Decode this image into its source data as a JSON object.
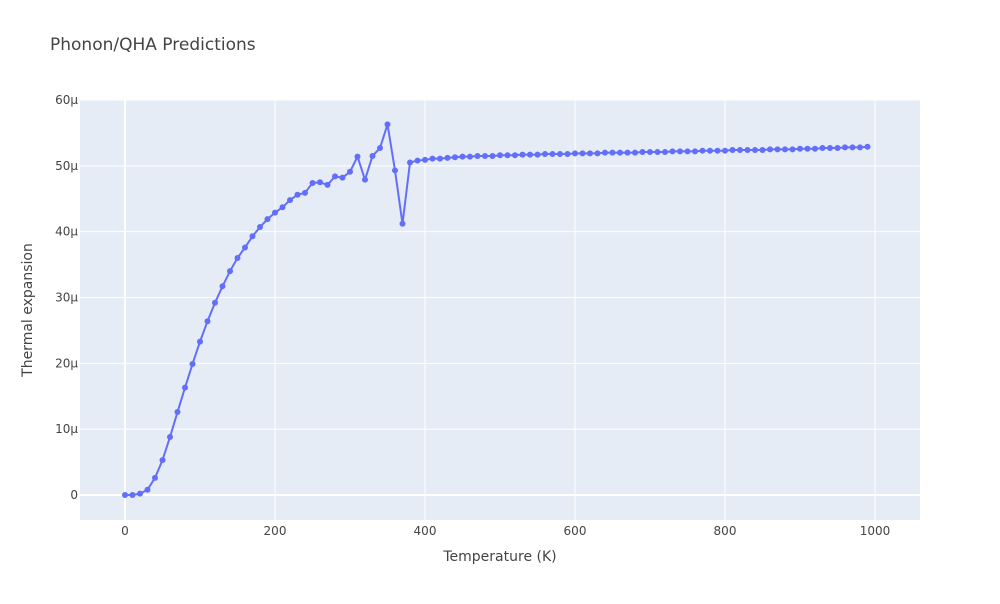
{
  "chart_data": {
    "type": "line",
    "title": "Phonon/QHA Predictions",
    "xlabel": "Temperature (K)",
    "ylabel": "Thermal expansion",
    "xlim": [
      -60,
      1060
    ],
    "ylim": [
      -3.8e-06,
      6e-05
    ],
    "x_ticks": [
      0,
      200,
      400,
      600,
      800,
      1000
    ],
    "x_tick_labels": [
      "0",
      "200",
      "400",
      "600",
      "800",
      "1000"
    ],
    "y_ticks": [
      0,
      1e-05,
      2e-05,
      3e-05,
      4e-05,
      5e-05,
      6e-05
    ],
    "y_tick_labels": [
      "0",
      "10μ",
      "20μ",
      "30μ",
      "40μ",
      "50μ",
      "60μ"
    ],
    "grid": true,
    "colors": {
      "series": "#636efa",
      "plot_bg": "#e5ecf6",
      "grid": "#ffffff"
    },
    "series": [
      {
        "mode": "lines+markers",
        "x": [
          0,
          10,
          20,
          30,
          40,
          50,
          60,
          70,
          80,
          90,
          100,
          110,
          120,
          130,
          140,
          150,
          160,
          170,
          180,
          190,
          200,
          210,
          220,
          230,
          240,
          250,
          260,
          270,
          280,
          290,
          300,
          310,
          320,
          330,
          340,
          350,
          360,
          370,
          380,
          390,
          400,
          410,
          420,
          430,
          440,
          450,
          460,
          470,
          480,
          490,
          500,
          510,
          520,
          530,
          540,
          550,
          560,
          570,
          580,
          590,
          600,
          610,
          620,
          630,
          640,
          650,
          660,
          670,
          680,
          690,
          700,
          710,
          720,
          730,
          740,
          750,
          760,
          770,
          780,
          790,
          800,
          810,
          820,
          830,
          840,
          850,
          860,
          870,
          880,
          890,
          900,
          910,
          920,
          930,
          940,
          950,
          960,
          970,
          980,
          990
        ],
        "y": [
          0,
          0,
          2e-07,
          8e-07,
          2.6e-06,
          5.3e-06,
          8.8e-06,
          1.26e-05,
          1.63e-05,
          1.99e-05,
          2.33e-05,
          2.64e-05,
          2.92e-05,
          3.17e-05,
          3.4e-05,
          3.6e-05,
          3.76e-05,
          3.93e-05,
          4.07e-05,
          4.19e-05,
          4.29e-05,
          4.37e-05,
          4.48e-05,
          4.56e-05,
          4.59e-05,
          4.74e-05,
          4.75e-05,
          4.71e-05,
          4.84e-05,
          4.82e-05,
          4.91e-05,
          5.14e-05,
          4.79e-05,
          5.15e-05,
          5.27e-05,
          5.63e-05,
          4.93e-05,
          4.12e-05,
          5.05e-05,
          5.08e-05,
          5.09e-05,
          5.11e-05,
          5.11e-05,
          5.12e-05,
          5.13e-05,
          5.14e-05,
          5.14e-05,
          5.15e-05,
          5.15e-05,
          5.15e-05,
          5.16e-05,
          5.16e-05,
          5.16e-05,
          5.17e-05,
          5.17e-05,
          5.17e-05,
          5.18e-05,
          5.18e-05,
          5.18e-05,
          5.18e-05,
          5.19e-05,
          5.19e-05,
          5.19e-05,
          5.19e-05,
          5.2e-05,
          5.2e-05,
          5.2e-05,
          5.2e-05,
          5.2e-05,
          5.21e-05,
          5.21e-05,
          5.21e-05,
          5.21e-05,
          5.22e-05,
          5.22e-05,
          5.22e-05,
          5.22e-05,
          5.23e-05,
          5.23e-05,
          5.23e-05,
          5.23e-05,
          5.24e-05,
          5.24e-05,
          5.24e-05,
          5.24e-05,
          5.24e-05,
          5.25e-05,
          5.25e-05,
          5.25e-05,
          5.25e-05,
          5.26e-05,
          5.26e-05,
          5.26e-05,
          5.27e-05,
          5.27e-05,
          5.27e-05,
          5.28e-05,
          5.28e-05,
          5.28e-05,
          5.29e-05
        ]
      }
    ]
  }
}
